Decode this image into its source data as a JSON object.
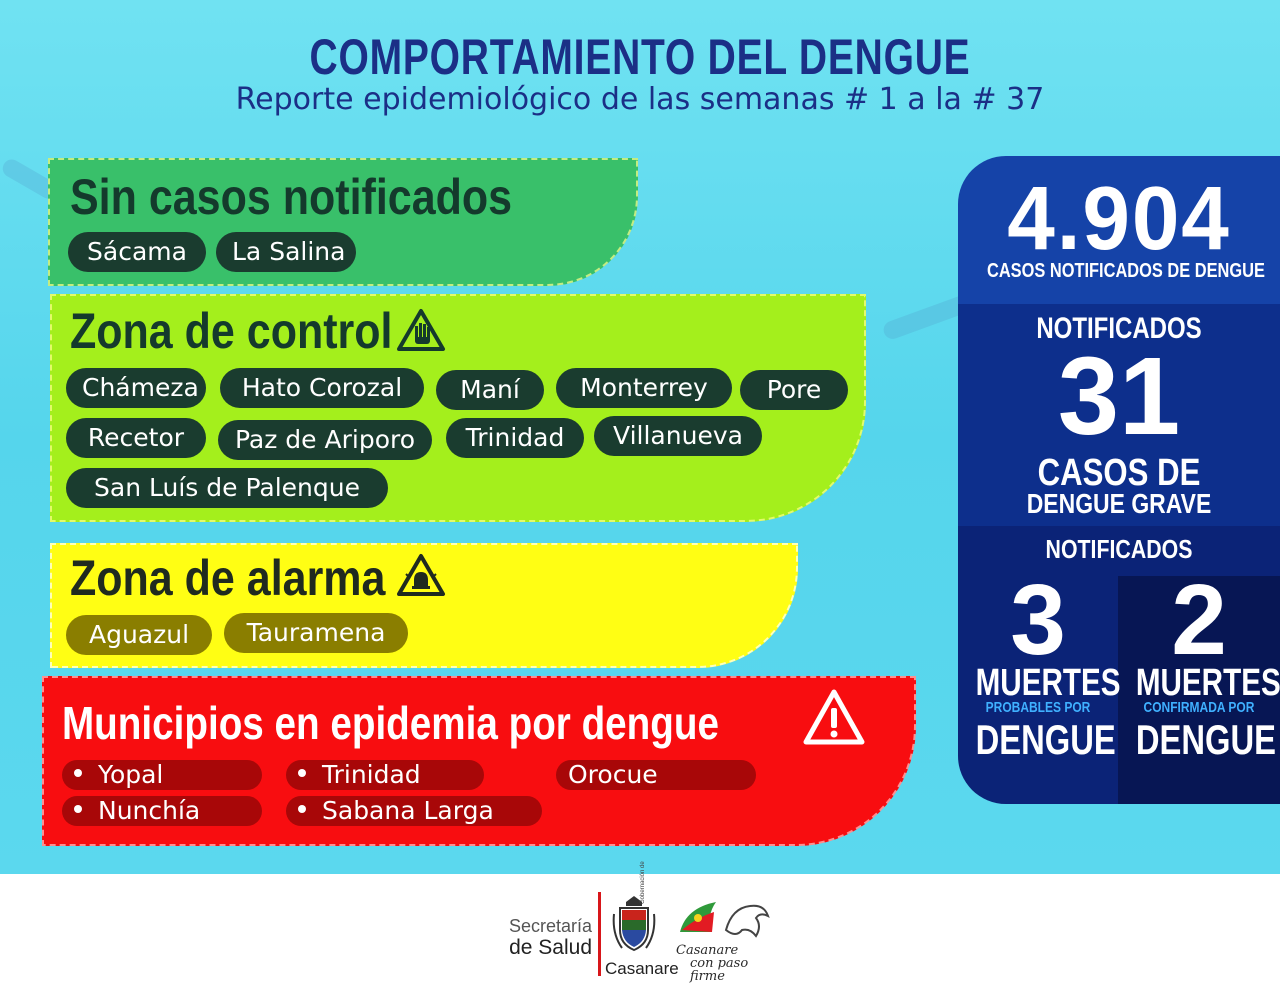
{
  "header": {
    "title": "COMPORTAMIENTO DEL DENGUE",
    "subtitle": "Reporte epidemiológico de las semanas # 1 a la  # 37"
  },
  "sin_casos": {
    "title": "Sin casos notificados",
    "municipios": [
      "Sácama",
      "La Salina"
    ]
  },
  "zona_control": {
    "title": "Zona de control",
    "icon": "hand-warning-icon",
    "municipios": [
      "Chámeza",
      "Hato Corozal",
      "Maní",
      "Monterrey",
      "Pore",
      "Recetor",
      "Paz de Ariporo",
      "Trinidad",
      "Villanueva",
      "San Luís de Palenque"
    ]
  },
  "zona_alarma": {
    "title": "Zona de alarma",
    "icon": "alarm-warning-icon",
    "municipios": [
      "Aguazul",
      "Tauramena"
    ]
  },
  "epidemia": {
    "title": "Municipios en epidemia por dengue",
    "icon": "exclamation-warning-icon",
    "municipios": [
      "Yopal",
      "Trinidad",
      "Orocue",
      "Nunchía",
      "Sabana Larga"
    ]
  },
  "stats": {
    "total": {
      "value": "4.904",
      "label": "CASOS NOTIFICADOS DE DENGUE"
    },
    "grave": {
      "notificados": "NOTIFICADOS",
      "value": "31",
      "label1": "CASOS DE",
      "label2": "DENGUE GRAVE"
    },
    "muertes": {
      "notificados": "NOTIFICADOS",
      "probables": {
        "value": "3",
        "muertes": "MUERTES",
        "sub": "PROBABLES POR",
        "dengue": "DENGUE"
      },
      "confirmadas": {
        "value": "2",
        "muertes": "MUERTES",
        "sub": "CONFIRMADA POR",
        "dengue": "DENGUE"
      }
    }
  },
  "footer": {
    "secretaria": "Secretaría",
    "de_salud": "de Salud",
    "gobernacion_small": "Gobernación de",
    "casanare": "Casanare",
    "slogan_line1": "Casanare",
    "slogan_line2": "con paso firme",
    "colors": {
      "divider": "#d8161a"
    }
  },
  "colors": {
    "background": "#5bd8ee",
    "title": "#1b2f86",
    "sin_casos": "#39c06a",
    "zona_control": "#a4ef1c",
    "zona_alarma": "#fffe14",
    "epidemia": "#f80d10",
    "stats_blue": "#1543a8",
    "stats_navy": "#071654"
  }
}
